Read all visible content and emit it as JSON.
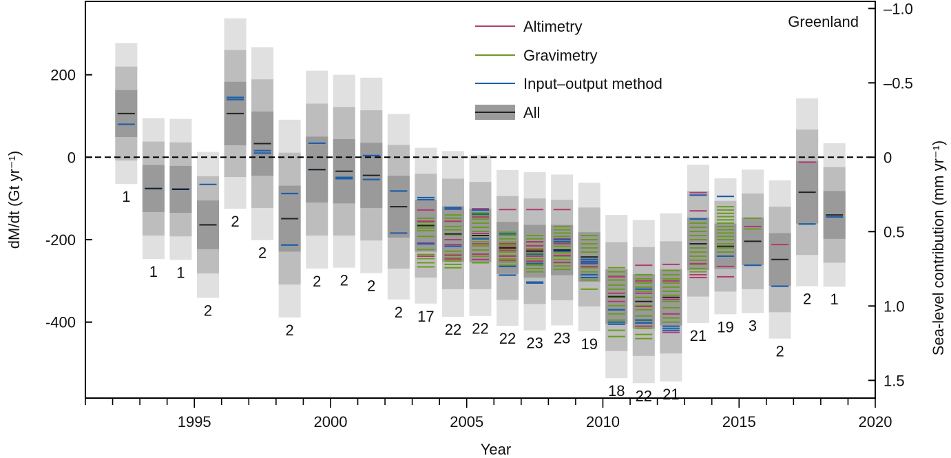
{
  "chart_data": {
    "type": "bar",
    "region_label": "Greenland",
    "xlabel": "Year",
    "ylabel": "dM/dt (Gt yr⁻¹)",
    "ylabel_right": "Sea-level contribution (mm yr⁻¹)",
    "xlim": [
      1991,
      2020
    ],
    "ylim": [
      -585,
      350
    ],
    "y_ticks": [
      200,
      0,
      -200,
      -400
    ],
    "y_tick_labels": [
      "200",
      "0",
      "-200",
      "-400"
    ],
    "y2_ticks": [
      -1.0,
      -0.5,
      0,
      0.5,
      1.0,
      1.5
    ],
    "y2_tick_labels": [
      "–1.0",
      "–0.5",
      "0",
      "0.5",
      "1.0",
      "1.5"
    ],
    "x_major_ticks": [
      1995,
      2000,
      2005,
      2010,
      2015,
      2020
    ],
    "x_tick_labels": [
      "1995",
      "2000",
      "2005",
      "2010",
      "2015",
      "2020"
    ],
    "zero_line": true,
    "legend": {
      "position": "top-center",
      "items": [
        {
          "name": "Altimetry",
          "color": "#b03a6e"
        },
        {
          "name": "Gravimetry",
          "color": "#6a9a1f"
        },
        {
          "name": "Input–output method",
          "color": "#1f5fa8"
        },
        {
          "name": "All",
          "color": "#222222"
        }
      ]
    },
    "colors": {
      "altimetry": "#b03a6e",
      "gravimetry": "#6a9a1f",
      "iom": "#1f5fa8",
      "all": "#222222",
      "band1": "#9a9a9a",
      "band2": "#bdbdbd",
      "band3": "#e0e0e0"
    },
    "series": [
      {
        "year": 1992,
        "mean": 106,
        "sigma": 57,
        "count": "1",
        "altimetry": [],
        "gravimetry": [],
        "iom": [
          80
        ]
      },
      {
        "year": 1993,
        "mean": -76,
        "sigma": 57,
        "count": "1",
        "altimetry": [],
        "gravimetry": [],
        "iom": [
          -76
        ]
      },
      {
        "year": 1994,
        "mean": -78,
        "sigma": 57,
        "count": "1",
        "altimetry": [],
        "gravimetry": [],
        "iom": [
          -77
        ]
      },
      {
        "year": 1995,
        "mean": -164,
        "sigma": 59,
        "count": "2",
        "altimetry": [],
        "gravimetry": [],
        "iom": [
          -66,
          -164
        ]
      },
      {
        "year": 1996,
        "mean": 106,
        "sigma": 77,
        "count": "2",
        "altimetry": [],
        "gravimetry": [],
        "iom": [
          140,
          145
        ]
      },
      {
        "year": 1997,
        "mean": 33,
        "sigma": 78,
        "count": "2",
        "altimetry": [],
        "gravimetry": [],
        "iom": [
          10,
          16
        ]
      },
      {
        "year": 1998,
        "mean": -149,
        "sigma": 80,
        "count": "2",
        "altimetry": [],
        "gravimetry": [],
        "iom": [
          -88,
          -213
        ]
      },
      {
        "year": 1999,
        "mean": -30,
        "sigma": 80,
        "count": "2",
        "altimetry": [],
        "gravimetry": [],
        "iom": [
          34,
          -30
        ]
      },
      {
        "year": 2000,
        "mean": -34,
        "sigma": 78,
        "count": "2",
        "altimetry": [],
        "gravimetry": [],
        "iom": [
          -49,
          -52
        ]
      },
      {
        "year": 2001,
        "mean": -44,
        "sigma": 79,
        "count": "2",
        "altimetry": [],
        "gravimetry": [],
        "iom": [
          4,
          -54
        ]
      },
      {
        "year": 2002,
        "mean": -120,
        "sigma": 75,
        "count": "2",
        "altimetry": [],
        "gravimetry": [],
        "iom": [
          -82,
          -184
        ]
      },
      {
        "year": 2003,
        "mean": -166,
        "sigma": 63,
        "count": "17",
        "altimetry": [
          -128,
          -155,
          -208,
          -240
        ],
        "gravimetry": [
          -148,
          -158,
          -164,
          -172,
          -178,
          -192,
          -224,
          -236,
          -246,
          -256,
          -266
        ],
        "iom": [
          -98,
          -103,
          -210
        ]
      },
      {
        "year": 2004,
        "mean": -186,
        "sigma": 67,
        "count": "22",
        "altimetry": [
          -125,
          -155,
          -200,
          -212,
          -238,
          -247
        ],
        "gravimetry": [
          -140,
          -148,
          -156,
          -168,
          -176,
          -188,
          -200,
          -228,
          -236,
          -244,
          -252,
          -260,
          -268
        ],
        "iom": [
          -122,
          -126,
          -216
        ]
      },
      {
        "year": 2005,
        "mean": -190,
        "sigma": 65,
        "count": "22",
        "altimetry": [
          -125,
          -145,
          -185,
          -210,
          -235,
          -248
        ],
        "gravimetry": [
          -135,
          -142,
          -150,
          -160,
          -170,
          -180,
          -190,
          -196,
          -205,
          -215,
          -225,
          -240,
          -256
        ],
        "iom": [
          -128,
          -138,
          -198
        ]
      },
      {
        "year": 2006,
        "mean": -220,
        "sigma": 63,
        "count": "22",
        "altimetry": [
          -127,
          -210,
          -218,
          -226,
          -240,
          -250
        ],
        "gravimetry": [
          -182,
          -190,
          -198,
          -206,
          -214,
          -222,
          -230,
          -238,
          -246,
          -254,
          -262
        ],
        "iom": [
          -186,
          -265,
          -286
        ]
      },
      {
        "year": 2007,
        "mean": -228,
        "sigma": 64,
        "count": "23",
        "altimetry": [
          -127,
          -205,
          -215,
          -225,
          -240,
          -252
        ],
        "gravimetry": [
          -190,
          -198,
          -206,
          -214,
          -222,
          -230,
          -238,
          -246,
          -254,
          -262,
          -270,
          -278
        ],
        "iom": [
          -235,
          -303,
          -305,
          -258
        ]
      },
      {
        "year": 2008,
        "mean": -225,
        "sigma": 61,
        "count": "23",
        "altimetry": [
          -127,
          -198,
          -210,
          -225,
          -238,
          -255
        ],
        "gravimetry": [
          -168,
          -176,
          -184,
          -192,
          -200,
          -208,
          -216,
          -224,
          -232,
          -240,
          -248,
          -256,
          -264,
          -272
        ],
        "iom": [
          -200,
          -205,
          -228
        ]
      },
      {
        "year": 2009,
        "mean": -242,
        "sigma": 60,
        "count": "19",
        "altimetry": [
          -255,
          -265
        ],
        "gravimetry": [
          -190,
          -200,
          -210,
          -220,
          -230,
          -248,
          -258,
          -268,
          -278,
          -298,
          -320
        ],
        "iom": [
          -248,
          -253,
          -258,
          -285,
          -292
        ]
      },
      {
        "year": 2010,
        "mean": -338,
        "sigma": 66,
        "count": "18",
        "altimetry": [
          -290,
          -330,
          -350
        ],
        "gravimetry": [
          -268,
          -278,
          -288,
          -298,
          -310,
          -320,
          -340,
          -360,
          -380,
          -395,
          -405,
          -420,
          -435
        ],
        "iom": [
          -370,
          -400,
          -405
        ]
      },
      {
        "year": 2011,
        "mean": -350,
        "sigma": 66,
        "count": "22",
        "altimetry": [
          -262,
          -300,
          -330,
          -362,
          -395,
          -410
        ],
        "gravimetry": [
          -285,
          -295,
          -305,
          -315,
          -325,
          -340,
          -350,
          -360,
          -370,
          -385,
          -400,
          -415,
          -430,
          -440
        ],
        "iom": [
          -320,
          -395,
          -402
        ]
      },
      {
        "year": 2012,
        "mean": -340,
        "sigma": 68,
        "count": "21",
        "altimetry": [
          -260,
          -300,
          -345,
          -380,
          -425
        ],
        "gravimetry": [
          -275,
          -285,
          -295,
          -305,
          -315,
          -325,
          -335,
          -350,
          -365,
          -380,
          -390,
          -400
        ],
        "iom": [
          -410,
          -415,
          -420
        ]
      },
      {
        "year": 2013,
        "mean": -210,
        "sigma": 64,
        "count": "21",
        "altimetry": [
          -86,
          -130,
          -258,
          -285,
          -292
        ],
        "gravimetry": [
          -160,
          -170,
          -180,
          -190,
          -200,
          -210,
          -220,
          -230,
          -240,
          -250,
          -260,
          -270,
          -278
        ],
        "iom": [
          -92,
          -150
        ]
      },
      {
        "year": 2014,
        "mean": -216,
        "sigma": 55,
        "count": "19",
        "altimetry": [
          -265,
          -290
        ],
        "gravimetry": [
          -120,
          -128,
          -136,
          -144,
          -152,
          -160,
          -168,
          -176,
          -184,
          -192,
          -200,
          -210,
          -220,
          -230
        ],
        "iom": [
          -95,
          -240
        ]
      },
      {
        "year": 2015,
        "mean": -204,
        "sigma": 58,
        "count": "3",
        "altimetry": [
          -168
        ],
        "gravimetry": [
          -148,
          -174
        ],
        "iom": [
          -262
        ]
      },
      {
        "year": 2016,
        "mean": -248,
        "sigma": 64,
        "count": "2",
        "altimetry": [
          -212
        ],
        "gravimetry": [],
        "iom": [
          -313
        ]
      },
      {
        "year": 2017,
        "mean": -85,
        "sigma": 76,
        "count": "2",
        "altimetry": [
          -12
        ],
        "gravimetry": [],
        "iom": [
          -162
        ]
      },
      {
        "year": 2018,
        "mean": -140,
        "sigma": 58,
        "count": "1",
        "altimetry": [],
        "gravimetry": [],
        "iom": [
          -145
        ]
      }
    ]
  }
}
